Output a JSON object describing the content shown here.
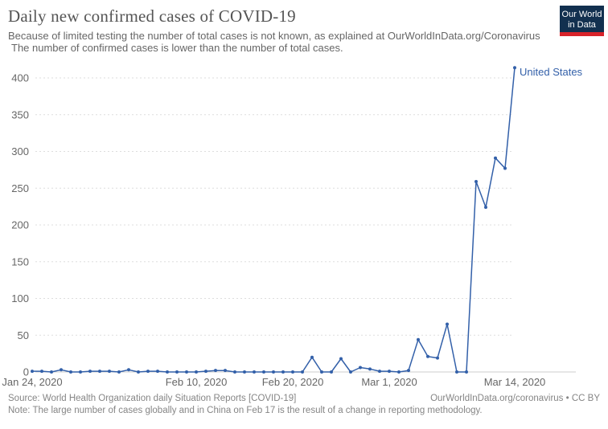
{
  "header": {
    "title": "Daily new confirmed cases of COVID-19",
    "subtitle_line1": "Because of limited testing the number of total cases is not known, as explained at OurWorldInData.org/Coronavirus",
    "subtitle_line2": "The number of confirmed cases is lower than the number of total cases.",
    "logo_line1": "Our World",
    "logo_line2": "in Data",
    "logo_bg_color": "#12304f",
    "logo_stripe_color": "#d8232a"
  },
  "chart_data": {
    "type": "line",
    "title": "Daily new confirmed cases of COVID-19",
    "grid": "horizontal-dashed",
    "legend_position": "end-of-line-label",
    "line_color": "#3360a9",
    "gridline_color": "#dddddd",
    "axis_label_color": "#666666",
    "y_ticks": [
      0,
      50,
      100,
      150,
      200,
      250,
      300,
      350,
      400
    ],
    "ylim": [
      0,
      420
    ],
    "x_ticks": [
      {
        "label": "Jan 24, 2020",
        "day": 0
      },
      {
        "label": "Feb 10, 2020",
        "day": 17
      },
      {
        "label": "Feb 20, 2020",
        "day": 27
      },
      {
        "label": "Mar 1, 2020",
        "day": 37
      },
      {
        "label": "Mar 14, 2020",
        "day": 50
      }
    ],
    "series": [
      {
        "name": "United States",
        "dates": [
          "Jan 24",
          "Jan 25",
          "Jan 26",
          "Jan 27",
          "Jan 28",
          "Jan 29",
          "Jan 30",
          "Jan 31",
          "Feb 1",
          "Feb 2",
          "Feb 3",
          "Feb 4",
          "Feb 5",
          "Feb 6",
          "Feb 7",
          "Feb 8",
          "Feb 9",
          "Feb 10",
          "Feb 11",
          "Feb 12",
          "Feb 13",
          "Feb 14",
          "Feb 15",
          "Feb 16",
          "Feb 17",
          "Feb 18",
          "Feb 19",
          "Feb 20",
          "Feb 21",
          "Feb 22",
          "Feb 23",
          "Feb 24",
          "Feb 25",
          "Feb 26",
          "Feb 27",
          "Feb 28",
          "Feb 29",
          "Mar 1",
          "Mar 2",
          "Mar 3",
          "Mar 4",
          "Mar 5",
          "Mar 6",
          "Mar 7",
          "Mar 8",
          "Mar 9",
          "Mar 10",
          "Mar 11",
          "Mar 12",
          "Mar 13",
          "Mar 14"
        ],
        "values": [
          1,
          1,
          0,
          3,
          0,
          0,
          1,
          1,
          1,
          0,
          3,
          0,
          1,
          1,
          0,
          0,
          0,
          0,
          1,
          2,
          2,
          0,
          0,
          0,
          0,
          0,
          0,
          0,
          0,
          20,
          0,
          0,
          18,
          0,
          6,
          4,
          1,
          1,
          0,
          2,
          44,
          21,
          19,
          65,
          0,
          0,
          259,
          224,
          291,
          277,
          414
        ]
      }
    ]
  },
  "footer": {
    "source": "Source: World Health Organization daily Situation Reports [COVID-19]",
    "credit": "OurWorldInData.org/coronavirus • CC BY",
    "note": "Note: The large number of cases globally and in China on Feb 17 is the result of a change in reporting methodology."
  }
}
